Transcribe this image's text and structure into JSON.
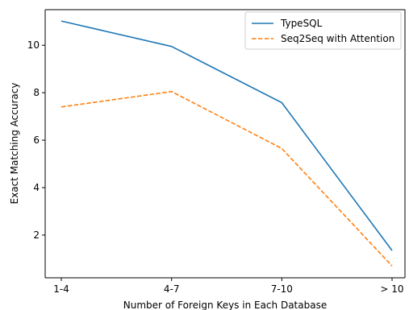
{
  "chart_data": {
    "type": "line",
    "categories": [
      "1-4",
      "4-7",
      "7-10",
      "> 10"
    ],
    "series": [
      {
        "name": "TypeSQL",
        "values": [
          11.02,
          9.95,
          7.58,
          1.35
        ],
        "color": "#1f77b4",
        "style": "solid"
      },
      {
        "name": "Seq2Seq with Attention",
        "values": [
          7.4,
          8.05,
          5.65,
          0.7
        ],
        "color": "#ff7f0e",
        "style": "dashed"
      }
    ],
    "xlabel": "Number of Foreign Keys in Each Database",
    "ylabel": "Exact Matching Accuracy",
    "ylim": [
      0.2,
      11.5
    ],
    "yticks": [
      2,
      4,
      6,
      8,
      10
    ],
    "grid": false,
    "legend_position": "top-right"
  }
}
